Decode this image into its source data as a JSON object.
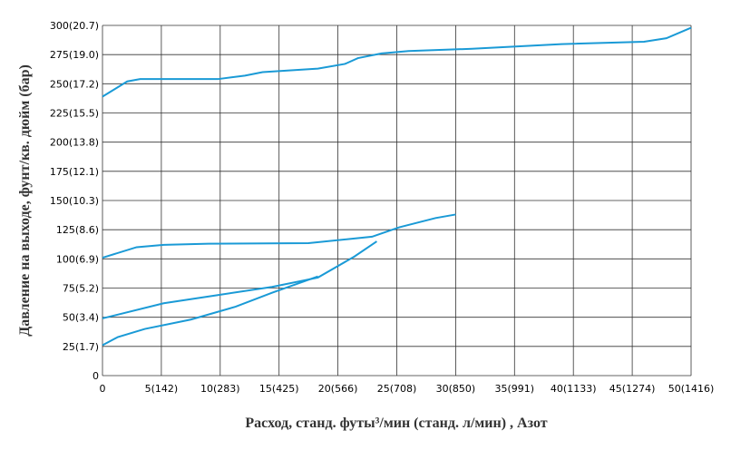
{
  "chart_data": {
    "type": "line",
    "x_label": "Расход, станд. футы³/мин (станд. л/мин) , Азот",
    "y_label": "Давление на выходе, фунт/кв. дюйм (бар)",
    "xlim": [
      0,
      50
    ],
    "ylim": [
      0,
      300
    ],
    "xticks": [
      0,
      {
        "value": 5,
        "label": "5(142)"
      },
      {
        "value": 10,
        "label": "10(283)"
      },
      {
        "value": 15,
        "label": "15(425)"
      },
      {
        "value": 20,
        "label": "20(566)"
      },
      {
        "value": 25,
        "label": "25(708)"
      },
      {
        "value": 30,
        "label": "30(850)"
      },
      {
        "value": 35,
        "label": "35(991)"
      },
      {
        "value": 40,
        "label": "40(1133)"
      },
      {
        "value": 45,
        "label": "45(1274)"
      },
      {
        "value": 50,
        "label": "50(1416)"
      }
    ],
    "yticks": [
      0,
      {
        "value": 25,
        "label": "25(1.7)"
      },
      {
        "value": 50,
        "label": "50(3.4)"
      },
      {
        "value": 75,
        "label": "75(5.2)"
      },
      {
        "value": 100,
        "label": "100(6.9)"
      },
      {
        "value": 125,
        "label": "125(8.6)"
      },
      {
        "value": 150,
        "label": "150(10.3)"
      },
      {
        "value": 175,
        "label": "175(12.1)"
      },
      {
        "value": 200,
        "label": "200(13.8)"
      },
      {
        "value": 225,
        "label": "225(15.5)"
      },
      {
        "value": 250,
        "label": "250(17.2)"
      },
      {
        "value": 275,
        "label": "275(19.0)"
      },
      {
        "value": 300,
        "label": "300(20.7)"
      }
    ],
    "grid": true,
    "series": [
      {
        "color": "#1a9ad6",
        "x": [
          0,
          2.1,
          3.2,
          9.8,
          12.1,
          13.6,
          18.3,
          20.6,
          21.7,
          23.7,
          26,
          31.4,
          39,
          46,
          47.9,
          50
        ],
        "values": [
          239,
          252,
          254,
          254,
          257,
          260,
          263,
          267,
          272,
          276,
          278,
          280,
          284,
          286,
          289,
          298
        ]
      },
      {
        "color": "#1a9ad6",
        "x": [
          0,
          2.9,
          5.2,
          9,
          17.5,
          22.9,
          25.2,
          28.3,
          30
        ],
        "values": [
          101,
          110,
          112,
          113,
          113.5,
          119,
          127,
          135,
          138
        ]
      },
      {
        "color": "#1a9ad6",
        "x": [
          0,
          5.2,
          9.8,
          14.4,
          18.3,
          21.4,
          23.3
        ],
        "values": [
          49,
          62,
          69,
          76,
          84,
          102,
          115
        ]
      },
      {
        "color": "#1a9ad6",
        "x": [
          0,
          1.3,
          3.6,
          7.5,
          11.3,
          14.4,
          18.3
        ],
        "values": [
          26,
          33,
          40,
          48,
          59,
          71,
          85
        ]
      }
    ]
  }
}
